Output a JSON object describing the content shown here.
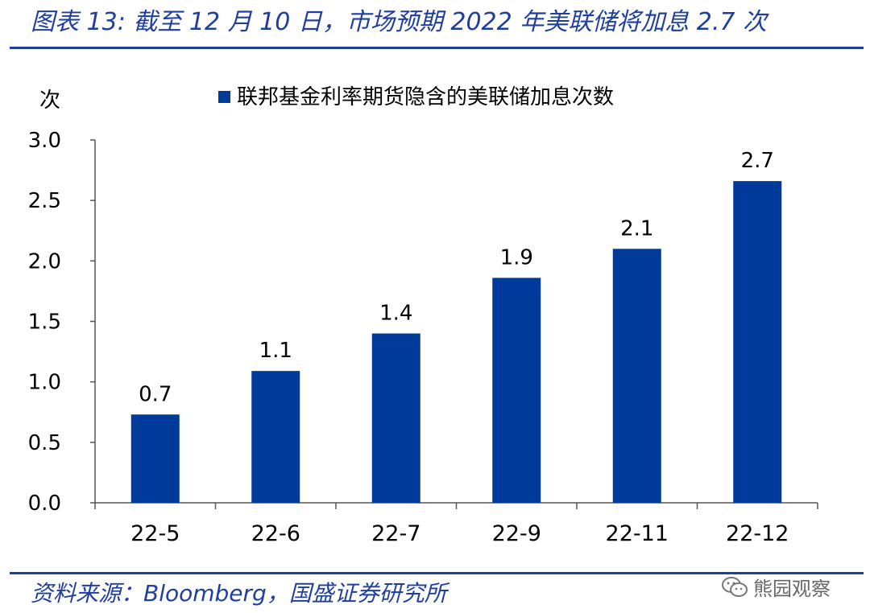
{
  "figure_title": "图表 13:  截至 12 月 10 日，市场预期 2022 年美联储将加息 2.7 次",
  "source_note": "资料来源：Bloomberg，国盛证券研究所",
  "watermark_text": "熊园观察",
  "colors": {
    "accent": "#1f3fa0",
    "bar": "#003a9a"
  },
  "chart_data": {
    "type": "bar",
    "categories": [
      "22-5",
      "22-6",
      "22-7",
      "22-9",
      "22-11",
      "22-12"
    ],
    "series": [
      {
        "name": "联邦基金利率期货隐含的美联储加息次数",
        "values": [
          0.73,
          1.09,
          1.4,
          1.86,
          2.1,
          2.66
        ],
        "labels": [
          "0.7",
          "1.1",
          "1.4",
          "1.9",
          "2.1",
          "2.7"
        ]
      }
    ],
    "ylabel": "次",
    "ylim": [
      0,
      3
    ],
    "yticks": [
      "0.0",
      "0.5",
      "1.0",
      "1.5",
      "2.0",
      "2.5",
      "3.0"
    ],
    "legend": "top-center",
    "grid": false
  }
}
